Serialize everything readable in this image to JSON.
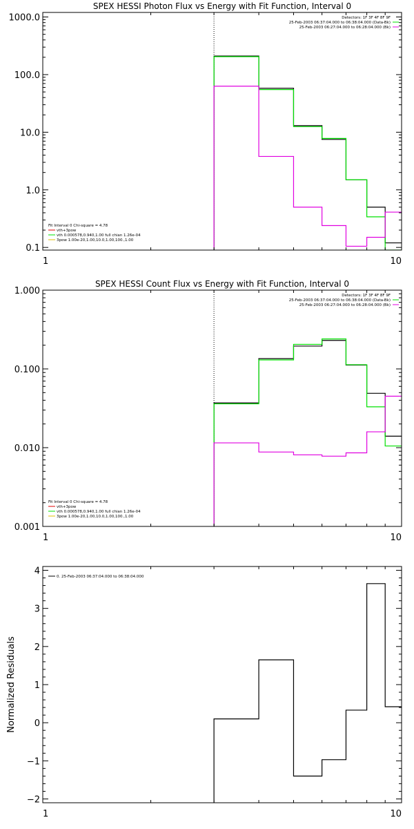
{
  "chart_data": [
    {
      "id": "photon",
      "type": "line",
      "title": "SPEX HESSI Photon Flux vs Energy with Fit Function, Interval 0",
      "xlabel": "",
      "ylabel": "",
      "xscale": "log",
      "yscale": "log",
      "xlim": [
        1,
        10
      ],
      "ylim": [
        0.09,
        1200
      ],
      "x_ticks": [
        1,
        10
      ],
      "x_tick_labels": [
        "1",
        "10"
      ],
      "y_ticks": [
        0.1,
        1,
        10,
        100,
        1000
      ],
      "y_tick_labels": [
        "0.1",
        "1.0",
        "10.0",
        "100.0",
        "1000.0"
      ],
      "marker_x": 3,
      "bin_edges": [
        3,
        4,
        5,
        6,
        7,
        8,
        9,
        10
      ],
      "series": [
        {
          "color": "#000000",
          "values": [
            210,
            58,
            13,
            7.5,
            1.5,
            0.5,
            0.12
          ]
        },
        {
          "color": "#00e000",
          "values": [
            205,
            55,
            12.5,
            7.8,
            1.5,
            0.34,
            0.09
          ]
        },
        {
          "color": "#e000e0",
          "values": [
            63,
            3.8,
            0.5,
            0.24,
            0.105,
            0.15,
            0.41
          ]
        }
      ],
      "legend_right": [
        "Detectors: 1F 3F 4F 8F 9F",
        "25-Feb-2003 06:37:04.000 to 06:38:04.000 (Data-Bk)",
        "25-Feb-2003 06:27:04.000 to 06:28:04.000 (Bk)"
      ],
      "legend_left": [
        "Fit Interval 0   Chi-square = 4.78",
        "vth+3pow",
        "vth 0.000578,0.940,1.00  full chian 1.26e-04",
        "3pow 1.00e-20,1.00,10.0,1.00,100.,1.00"
      ]
    },
    {
      "id": "count",
      "type": "line",
      "title": "SPEX HESSI Count Flux vs Energy with Fit Function, Interval 0",
      "xlabel": "",
      "ylabel": "",
      "xscale": "log",
      "yscale": "log",
      "xlim": [
        1,
        10
      ],
      "ylim": [
        0.001,
        1.0
      ],
      "x_ticks": [
        1,
        10
      ],
      "x_tick_labels": [
        "1",
        "10"
      ],
      "y_ticks": [
        0.001,
        0.01,
        0.1,
        1.0
      ],
      "y_tick_labels": [
        "0.001",
        "0.010",
        "0.100",
        "1.000"
      ],
      "marker_x": 3,
      "bin_edges": [
        3,
        4,
        5,
        6,
        7,
        8,
        9,
        10
      ],
      "series": [
        {
          "color": "#000000",
          "values": [
            0.037,
            0.135,
            0.195,
            0.23,
            0.112,
            0.049,
            0.014
          ]
        },
        {
          "color": "#00e000",
          "values": [
            0.036,
            0.13,
            0.205,
            0.24,
            0.113,
            0.033,
            0.0105
          ]
        },
        {
          "color": "#e000e0",
          "values": [
            0.0115,
            0.0088,
            0.0081,
            0.0078,
            0.0086,
            0.0159,
            0.045
          ]
        }
      ],
      "legend_right": [
        "Detectors: 1F 3F 4F 8F 9F",
        "25-Feb-2003 06:37:04.000 to 06:38:04.000 (Data-Bk)",
        "25-Feb-2003 06:27:04.000 to 06:28:04.000 (Bk)"
      ],
      "legend_left": [
        "Fit Interval 0   Chi-square = 4.78",
        "vth+3pow",
        "vth 0.000578,0.940,1.00  full chian 1.26e-04",
        "3pow 1.00e-20,1.00,10.0,1.00,100.,1.00"
      ]
    },
    {
      "id": "residuals",
      "type": "line",
      "title": "",
      "xlabel": "",
      "ylabel": "Normalized Residuals",
      "xscale": "log",
      "yscale": "linear",
      "xlim": [
        1,
        10
      ],
      "ylim": [
        -2.1,
        4.1
      ],
      "x_ticks": [
        1,
        10
      ],
      "x_tick_labels": [
        "1",
        "10"
      ],
      "y_ticks": [
        -2,
        -1,
        0,
        1,
        2,
        3,
        4
      ],
      "y_tick_labels": [
        "−2",
        "−1",
        "0",
        "1",
        "2",
        "3",
        "4"
      ],
      "bin_edges": [
        3,
        4,
        5,
        6,
        7,
        8,
        9,
        10
      ],
      "series": [
        {
          "color": "#000000",
          "values": [
            0.1,
            1.65,
            -1.4,
            -0.97,
            0.33,
            3.65,
            0.42
          ]
        }
      ],
      "legend_left": [
        "0. 25-Feb-2003 06:37:04.000 to 06:38:04.000"
      ]
    }
  ]
}
